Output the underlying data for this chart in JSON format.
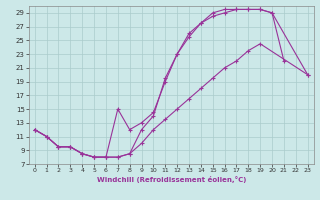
{
  "xlabel": "Windchill (Refroidissement éolien,°C)",
  "bg_color": "#cce8e8",
  "line_color": "#993399",
  "grid_color": "#aacccc",
  "xlim": [
    -0.5,
    23.5
  ],
  "ylim": [
    7,
    30
  ],
  "yticks": [
    7,
    9,
    11,
    13,
    15,
    17,
    19,
    21,
    23,
    25,
    27,
    29
  ],
  "xticks": [
    0,
    1,
    2,
    3,
    4,
    5,
    6,
    7,
    8,
    9,
    10,
    11,
    12,
    13,
    14,
    15,
    16,
    17,
    18,
    19,
    20,
    21,
    22,
    23
  ],
  "c1_x": [
    0,
    1,
    2,
    3,
    4,
    5,
    6,
    7,
    8,
    9,
    10,
    11,
    12,
    13,
    14,
    15,
    16,
    17,
    18,
    19,
    20,
    21
  ],
  "c1_y": [
    12,
    11,
    9.5,
    9.5,
    8.5,
    8,
    8,
    8,
    8.5,
    12,
    14,
    19.5,
    23,
    26,
    27.5,
    29,
    29.5,
    29.5,
    29.5,
    29.5,
    29,
    22
  ],
  "c2_x": [
    0,
    1,
    2,
    3,
    4,
    5,
    6,
    7,
    8,
    9,
    10,
    11,
    12,
    13,
    14,
    15,
    16,
    17,
    18,
    19,
    20,
    23
  ],
  "c2_y": [
    12,
    11,
    9.5,
    9.5,
    8.5,
    8,
    8,
    15,
    12,
    13,
    14.5,
    19,
    23,
    25.5,
    27.5,
    28.5,
    29,
    29.5,
    29.5,
    29.5,
    29,
    20
  ],
  "c3_x": [
    0,
    1,
    2,
    3,
    4,
    5,
    6,
    7,
    8,
    9,
    10,
    11,
    12,
    13,
    14,
    15,
    16,
    17,
    18,
    19,
    23
  ],
  "c3_y": [
    12,
    11,
    9.5,
    9.5,
    8.5,
    8,
    8,
    8,
    8.5,
    10,
    12,
    13.5,
    15,
    16.5,
    18,
    19.5,
    21,
    22,
    23.5,
    24.5,
    20
  ]
}
